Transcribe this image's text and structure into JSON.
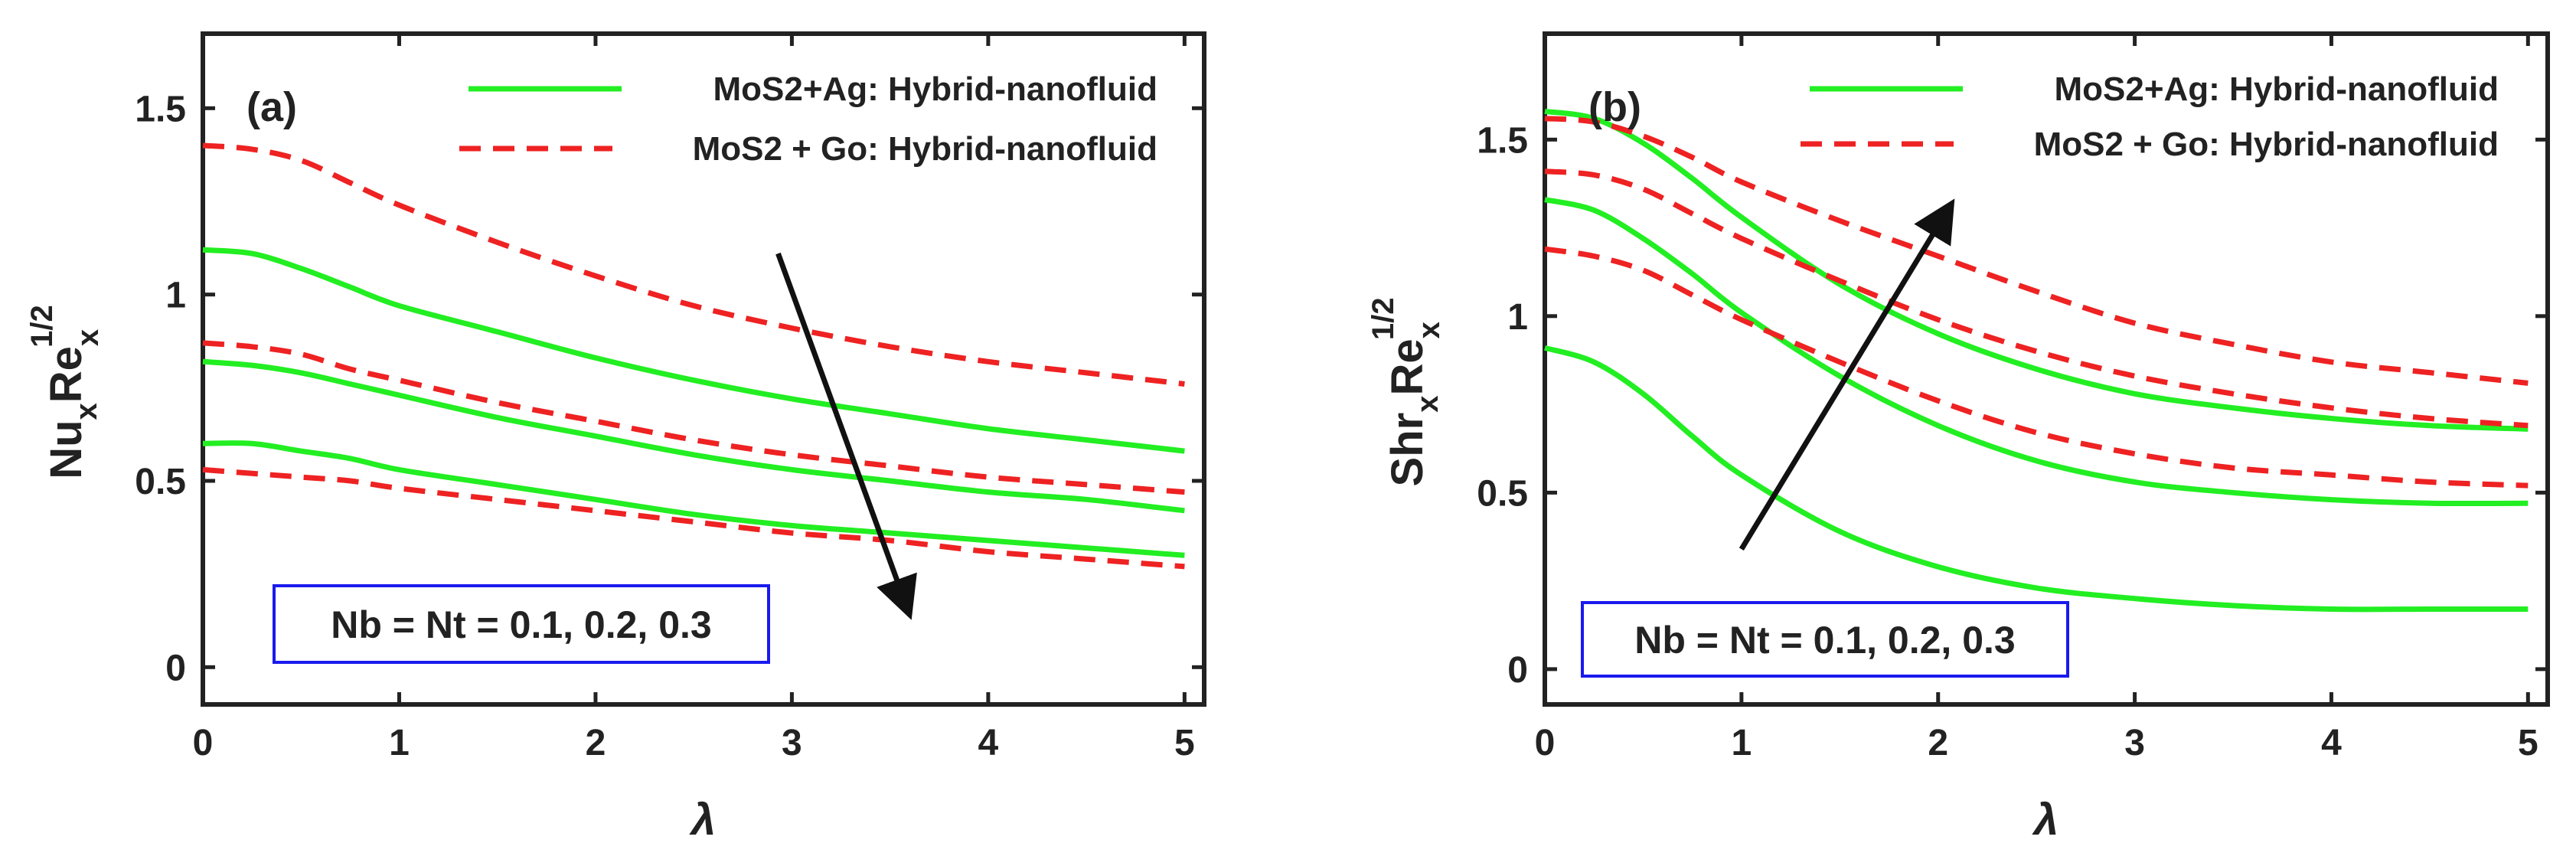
{
  "chart_data": [
    {
      "type": "line",
      "panel_label": "(a)",
      "xlabel": "λ",
      "ylabel": {
        "base1": "Nu",
        "sub1": "x",
        "base2": "Re",
        "sub2": "x",
        "sup": "1/2"
      },
      "xlim": [
        0,
        5.1
      ],
      "ylim": [
        -0.1,
        1.7
      ],
      "xticks": [
        0,
        1,
        2,
        3,
        4,
        5
      ],
      "yticks": [
        0,
        0.5,
        1,
        1.5
      ],
      "ytick_labels": [
        "0",
        "0.5",
        "1",
        "1.5"
      ],
      "legend": [
        {
          "label": "MoS2+Ag: Hybrid-nanofluid",
          "color": "#22ee22",
          "style": "solid"
        },
        {
          "label": "MoS2 + Go: Hybrid-nanofluid",
          "color": "#ee2222",
          "style": "dashed"
        }
      ],
      "parameter_label": "Nb = Nt = 0.1, 0.2, 0.3",
      "arrow": {
        "from": [
          2.93,
          1.11
        ],
        "to": [
          3.6,
          0.14
        ],
        "direction": "decreasing"
      },
      "x": [
        0,
        0.25,
        0.5,
        0.75,
        1,
        1.5,
        2,
        2.5,
        3,
        3.5,
        4,
        4.5,
        5
      ],
      "series": [
        {
          "name": "MoS2+Ag, Nb=Nt=0.1",
          "group": 0,
          "values": [
            1.12,
            1.11,
            1.07,
            1.02,
            0.97,
            0.9,
            0.83,
            0.77,
            0.72,
            0.68,
            0.64,
            0.61,
            0.58
          ]
        },
        {
          "name": "MoS2+Ag, Nb=Nt=0.2",
          "group": 0,
          "values": [
            0.82,
            0.81,
            0.79,
            0.76,
            0.73,
            0.67,
            0.62,
            0.57,
            0.53,
            0.5,
            0.47,
            0.45,
            0.42
          ]
        },
        {
          "name": "MoS2+Ag, Nb=Nt=0.3",
          "group": 0,
          "values": [
            0.6,
            0.6,
            0.58,
            0.56,
            0.53,
            0.49,
            0.45,
            0.41,
            0.38,
            0.36,
            0.34,
            0.32,
            0.3
          ]
        },
        {
          "name": "MoS2 + Go, Nb=Nt=0.1",
          "group": 1,
          "values": [
            1.4,
            1.39,
            1.36,
            1.3,
            1.24,
            1.14,
            1.05,
            0.97,
            0.91,
            0.86,
            0.82,
            0.79,
            0.76
          ]
        },
        {
          "name": "MoS2 + Go, Nb=Nt=0.2",
          "group": 1,
          "values": [
            0.87,
            0.86,
            0.84,
            0.8,
            0.77,
            0.71,
            0.66,
            0.61,
            0.57,
            0.54,
            0.51,
            0.49,
            0.47
          ]
        },
        {
          "name": "MoS2 + Go, Nb=Nt=0.3",
          "group": 1,
          "values": [
            0.53,
            0.52,
            0.51,
            0.5,
            0.48,
            0.45,
            0.42,
            0.39,
            0.36,
            0.34,
            0.31,
            0.29,
            0.27
          ]
        }
      ]
    },
    {
      "type": "line",
      "panel_label": "(b)",
      "xlabel": "λ",
      "ylabel": {
        "base1": "Shr",
        "sub1": "x",
        "base2": "Re",
        "sub2": "x",
        "sup": "1/2"
      },
      "xlim": [
        0,
        5.1
      ],
      "ylim": [
        -0.1,
        1.8
      ],
      "xticks": [
        0,
        1,
        2,
        3,
        4,
        5
      ],
      "yticks": [
        0,
        0.5,
        1,
        1.5
      ],
      "ytick_labels": [
        "0",
        "0.5",
        "1",
        "1.5"
      ],
      "legend": [
        {
          "label": "MoS2+Ag: Hybrid-nanofluid",
          "color": "#22ee22",
          "style": "solid"
        },
        {
          "label": "MoS2 + Go: Hybrid-nanofluid",
          "color": "#ee2222",
          "style": "dashed"
        }
      ],
      "parameter_label": "Nb = Nt = 0.1, 0.2, 0.3",
      "arrow": {
        "from": [
          1.0,
          0.34
        ],
        "to": [
          2.07,
          1.32
        ],
        "direction": "increasing"
      },
      "x": [
        0,
        0.25,
        0.5,
        0.75,
        1,
        1.5,
        2,
        2.5,
        3,
        3.5,
        4,
        4.5,
        5
      ],
      "series": [
        {
          "name": "MoS2+Ag, Nb=Nt=0.1",
          "group": 0,
          "values": [
            0.91,
            0.87,
            0.78,
            0.66,
            0.55,
            0.39,
            0.29,
            0.23,
            0.2,
            0.18,
            0.17,
            0.17,
            0.17
          ]
        },
        {
          "name": "MoS2+Ag, Nb=Nt=0.2",
          "group": 0,
          "values": [
            1.33,
            1.3,
            1.22,
            1.12,
            1.01,
            0.83,
            0.69,
            0.59,
            0.53,
            0.5,
            0.48,
            0.47,
            0.47
          ]
        },
        {
          "name": "MoS2+Ag, Nb=Nt=0.3",
          "group": 0,
          "values": [
            1.58,
            1.56,
            1.49,
            1.39,
            1.28,
            1.09,
            0.95,
            0.85,
            0.78,
            0.74,
            0.71,
            0.69,
            0.68
          ]
        },
        {
          "name": "MoS2 + Go, Nb=Nt=0.1",
          "group": 1,
          "values": [
            1.19,
            1.17,
            1.13,
            1.06,
            0.99,
            0.87,
            0.76,
            0.67,
            0.61,
            0.57,
            0.55,
            0.53,
            0.52
          ]
        },
        {
          "name": "MoS2 + Go, Nb=Nt=0.2",
          "group": 1,
          "values": [
            1.41,
            1.4,
            1.36,
            1.29,
            1.22,
            1.1,
            0.99,
            0.9,
            0.83,
            0.78,
            0.74,
            0.71,
            0.69
          ]
        },
        {
          "name": "MoS2 + Go, Nb=Nt=0.3",
          "group": 1,
          "values": [
            1.56,
            1.55,
            1.51,
            1.45,
            1.38,
            1.27,
            1.17,
            1.07,
            0.98,
            0.92,
            0.87,
            0.84,
            0.81
          ]
        }
      ]
    }
  ]
}
